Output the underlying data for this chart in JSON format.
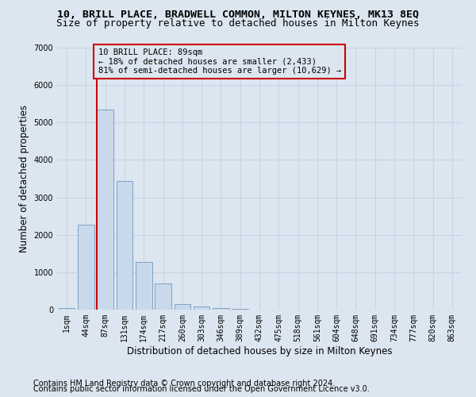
{
  "title": "10, BRILL PLACE, BRADWELL COMMON, MILTON KEYNES, MK13 8EQ",
  "subtitle": "Size of property relative to detached houses in Milton Keynes",
  "xlabel": "Distribution of detached houses by size in Milton Keynes",
  "ylabel": "Number of detached properties",
  "footnote1": "Contains HM Land Registry data © Crown copyright and database right 2024.",
  "footnote2": "Contains public sector information licensed under the Open Government Licence v3.0.",
  "bar_color": "#c9d9ec",
  "bar_edge_color": "#7099bb",
  "grid_color": "#c8d4e4",
  "bg_color": "#dce6f0",
  "annotation_box_color": "#cc0000",
  "property_line_color": "#cc0000",
  "categories": [
    "1sqm",
    "44sqm",
    "87sqm",
    "131sqm",
    "174sqm",
    "217sqm",
    "260sqm",
    "303sqm",
    "346sqm",
    "389sqm",
    "432sqm",
    "475sqm",
    "518sqm",
    "561sqm",
    "604sqm",
    "648sqm",
    "691sqm",
    "734sqm",
    "777sqm",
    "820sqm",
    "863sqm"
  ],
  "values": [
    50,
    2280,
    5350,
    3430,
    1270,
    710,
    155,
    85,
    50,
    15,
    5,
    2,
    1,
    0,
    0,
    0,
    0,
    0,
    0,
    0,
    0
  ],
  "ylim": [
    0,
    7000
  ],
  "yticks": [
    0,
    1000,
    2000,
    3000,
    4000,
    5000,
    6000,
    7000
  ],
  "property_bar_index": 2,
  "annotation_text_line1": "10 BRILL PLACE: 89sqm",
  "annotation_text_line2": "← 18% of detached houses are smaller (2,433)",
  "annotation_text_line3": "81% of semi-detached houses are larger (10,629) →",
  "title_fontsize": 9.5,
  "subtitle_fontsize": 9,
  "axis_label_fontsize": 8.5,
  "tick_fontsize": 7,
  "annotation_fontsize": 7.5,
  "footnote_fontsize": 7
}
